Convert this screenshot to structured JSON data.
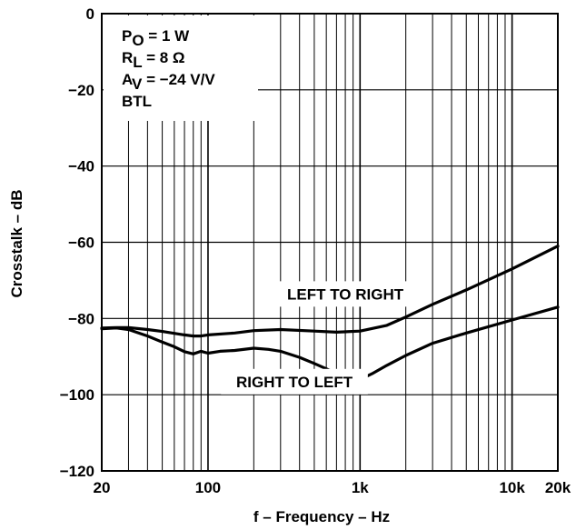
{
  "chart_data": {
    "type": "line",
    "title": "",
    "xlabel": "f – Frequency – Hz",
    "ylabel": "Crosstalk – dB",
    "xscale": "log",
    "xlim": [
      20,
      20000
    ],
    "ylim": [
      -120,
      0
    ],
    "grid": true,
    "x_ticks": [
      {
        "value": 20,
        "label": "20"
      },
      {
        "value": 100,
        "label": "100"
      },
      {
        "value": 1000,
        "label": "1k"
      },
      {
        "value": 10000,
        "label": "10k"
      },
      {
        "value": 20000,
        "label": "20k"
      }
    ],
    "y_ticks": [
      {
        "value": 0,
        "label": "0"
      },
      {
        "value": -20,
        "label": "−20"
      },
      {
        "value": -40,
        "label": "−40"
      },
      {
        "value": -60,
        "label": "−60"
      },
      {
        "value": -80,
        "label": "−80"
      },
      {
        "value": -100,
        "label": "−100"
      },
      {
        "value": -120,
        "label": "−120"
      }
    ],
    "conditions": [
      {
        "main": "P",
        "sub": "O",
        "rest": " = 1 W"
      },
      {
        "main": "R",
        "sub": "L",
        "rest": " = 8 Ω"
      },
      {
        "main": "A",
        "sub": "V",
        "rest": " = −24 V/V"
      },
      {
        "main": "BTL",
        "sub": "",
        "rest": ""
      }
    ],
    "series": [
      {
        "name": "LEFT TO RIGHT",
        "x": [
          20,
          25,
          30,
          40,
          50,
          60,
          70,
          80,
          90,
          100,
          150,
          200,
          300,
          500,
          700,
          1000,
          1500,
          2000,
          3000,
          5000,
          10000,
          20000
        ],
        "y": [
          -82.5,
          -82.4,
          -82.4,
          -82.9,
          -83.4,
          -83.9,
          -84.3,
          -84.6,
          -84.6,
          -84.3,
          -83.8,
          -83.2,
          -82.9,
          -83.3,
          -83.6,
          -83.3,
          -81.8,
          -79.6,
          -76.3,
          -72.5,
          -67,
          -61
        ]
      },
      {
        "name": "RIGHT TO LEFT",
        "x": [
          20,
          25,
          30,
          40,
          50,
          60,
          70,
          80,
          90,
          100,
          120,
          150,
          200,
          250,
          300,
          400,
          500,
          600,
          700,
          800,
          900,
          1000,
          1200,
          1500,
          2000,
          3000,
          5000,
          10000,
          20000
        ],
        "y": [
          -82.7,
          -82.5,
          -82.9,
          -84.6,
          -86.2,
          -87.4,
          -88.7,
          -89.3,
          -88.6,
          -89.1,
          -88.6,
          -88.4,
          -87.8,
          -88.1,
          -88.6,
          -90.2,
          -91.8,
          -93.2,
          -94.5,
          -95.3,
          -95.9,
          -96,
          -94.5,
          -92.3,
          -89.7,
          -86.5,
          -83.8,
          -80.4,
          -77
        ]
      }
    ],
    "annotations": [
      {
        "text": "LEFT TO RIGHT",
        "x": 800,
        "y": -75
      },
      {
        "text": "RIGHT TO LEFT",
        "x": 370,
        "y": -98
      }
    ]
  }
}
